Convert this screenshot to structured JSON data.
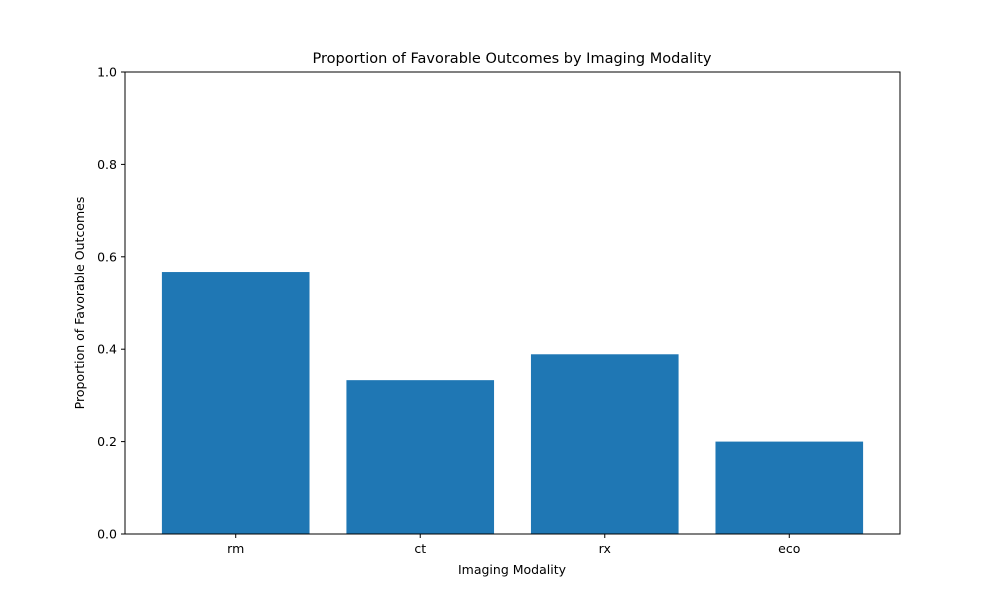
{
  "chart_data": {
    "type": "bar",
    "title": "Proportion of Favorable Outcomes by Imaging Modality",
    "xlabel": "Imaging Modality",
    "ylabel": "Proportion of Favorable Outcomes",
    "categories": [
      "rm",
      "ct",
      "rx",
      "eco"
    ],
    "values": [
      0.567,
      0.333,
      0.389,
      0.2
    ],
    "ylim": [
      0,
      1
    ],
    "yticks": [
      0.0,
      0.2,
      0.4,
      0.6,
      0.8,
      1.0
    ],
    "ytick_labels": [
      "0.0",
      "0.2",
      "0.4",
      "0.6",
      "0.8",
      "1.0"
    ],
    "grid": false,
    "bar_color": "#1f77b4"
  }
}
